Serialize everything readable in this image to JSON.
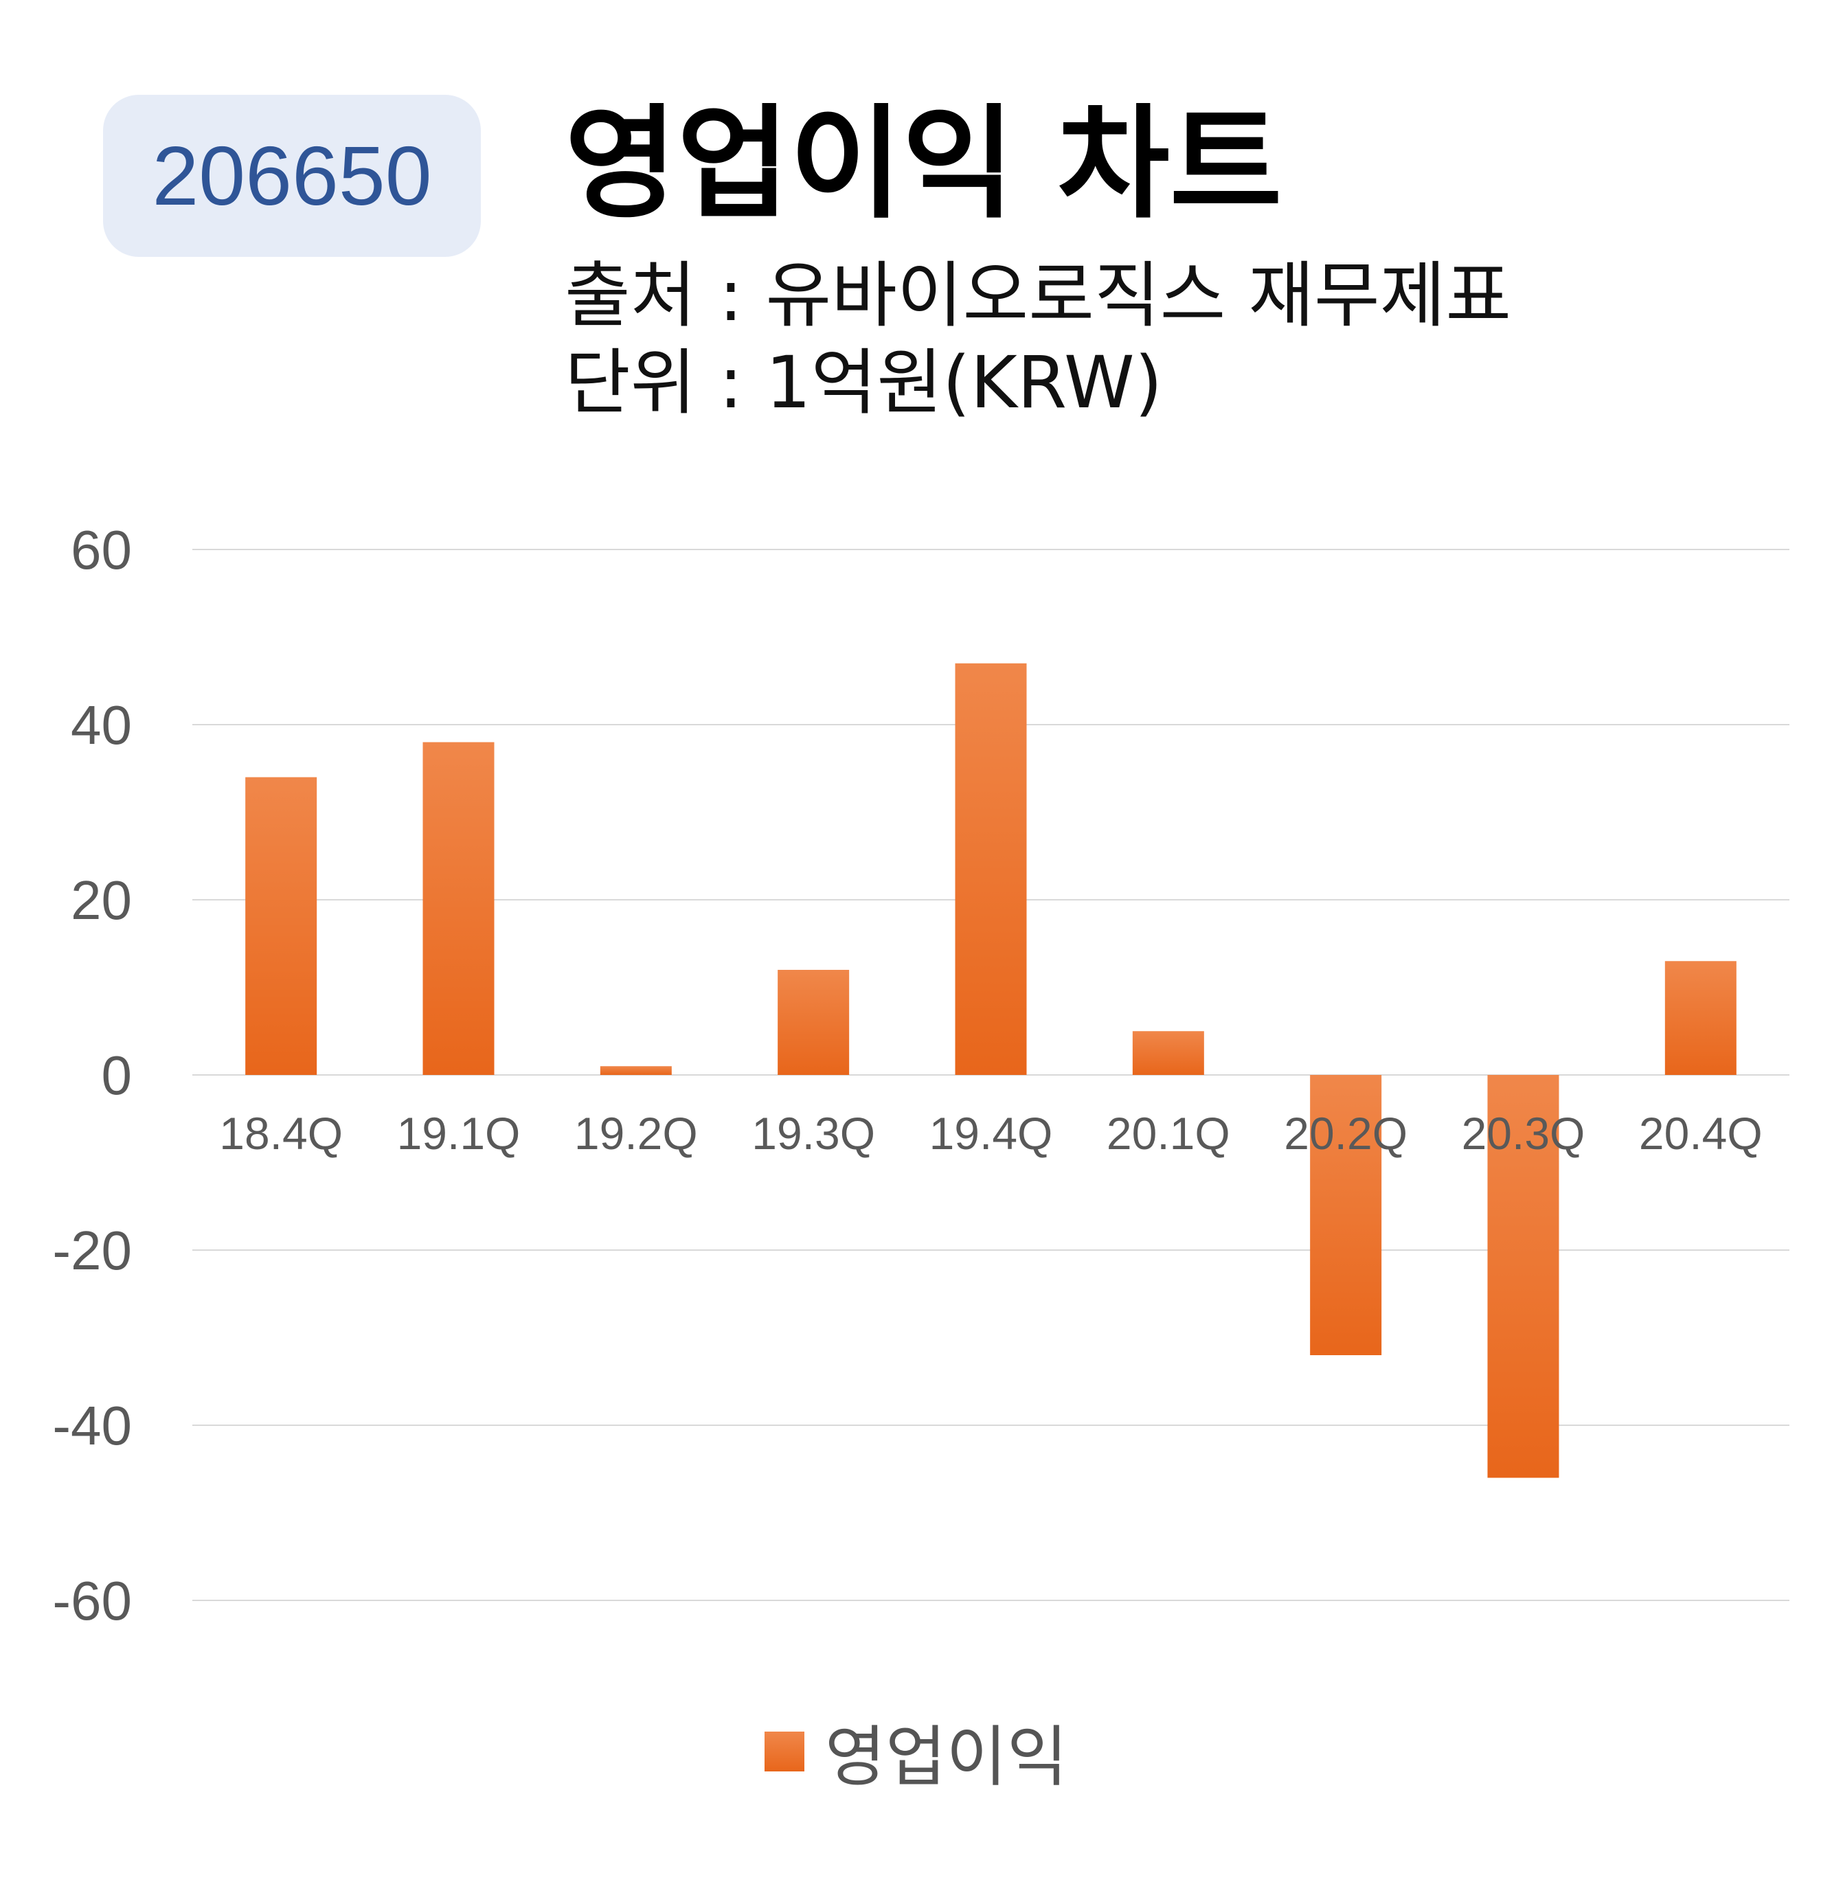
{
  "badge": {
    "code": "206650"
  },
  "header": {
    "title": "영업이익 차트",
    "source": "출처 : 유바이오로직스 재무제표",
    "unit": "단위 : 1억원(KRW)"
  },
  "chart_data": {
    "type": "bar",
    "categories": [
      "18.4Q",
      "19.1Q",
      "19.2Q",
      "19.3Q",
      "19.4Q",
      "20.1Q",
      "20.2Q",
      "20.3Q",
      "20.4Q"
    ],
    "series": [
      {
        "name": "영업이익",
        "values": [
          34,
          38,
          1,
          12,
          47,
          5,
          -32,
          -46,
          13
        ]
      }
    ],
    "title": "영업이익 차트",
    "xlabel": "",
    "ylabel": "",
    "ylim": [
      -60,
      60
    ],
    "yticks": [
      60,
      40,
      20,
      0,
      -20,
      -40,
      -60
    ],
    "grid": true,
    "legend": "bottom-center",
    "colors": {
      "bar_top": "#f0874a",
      "bar_bottom": "#e8661b",
      "grid": "#d9d9d9",
      "tick_label": "#595959"
    }
  }
}
